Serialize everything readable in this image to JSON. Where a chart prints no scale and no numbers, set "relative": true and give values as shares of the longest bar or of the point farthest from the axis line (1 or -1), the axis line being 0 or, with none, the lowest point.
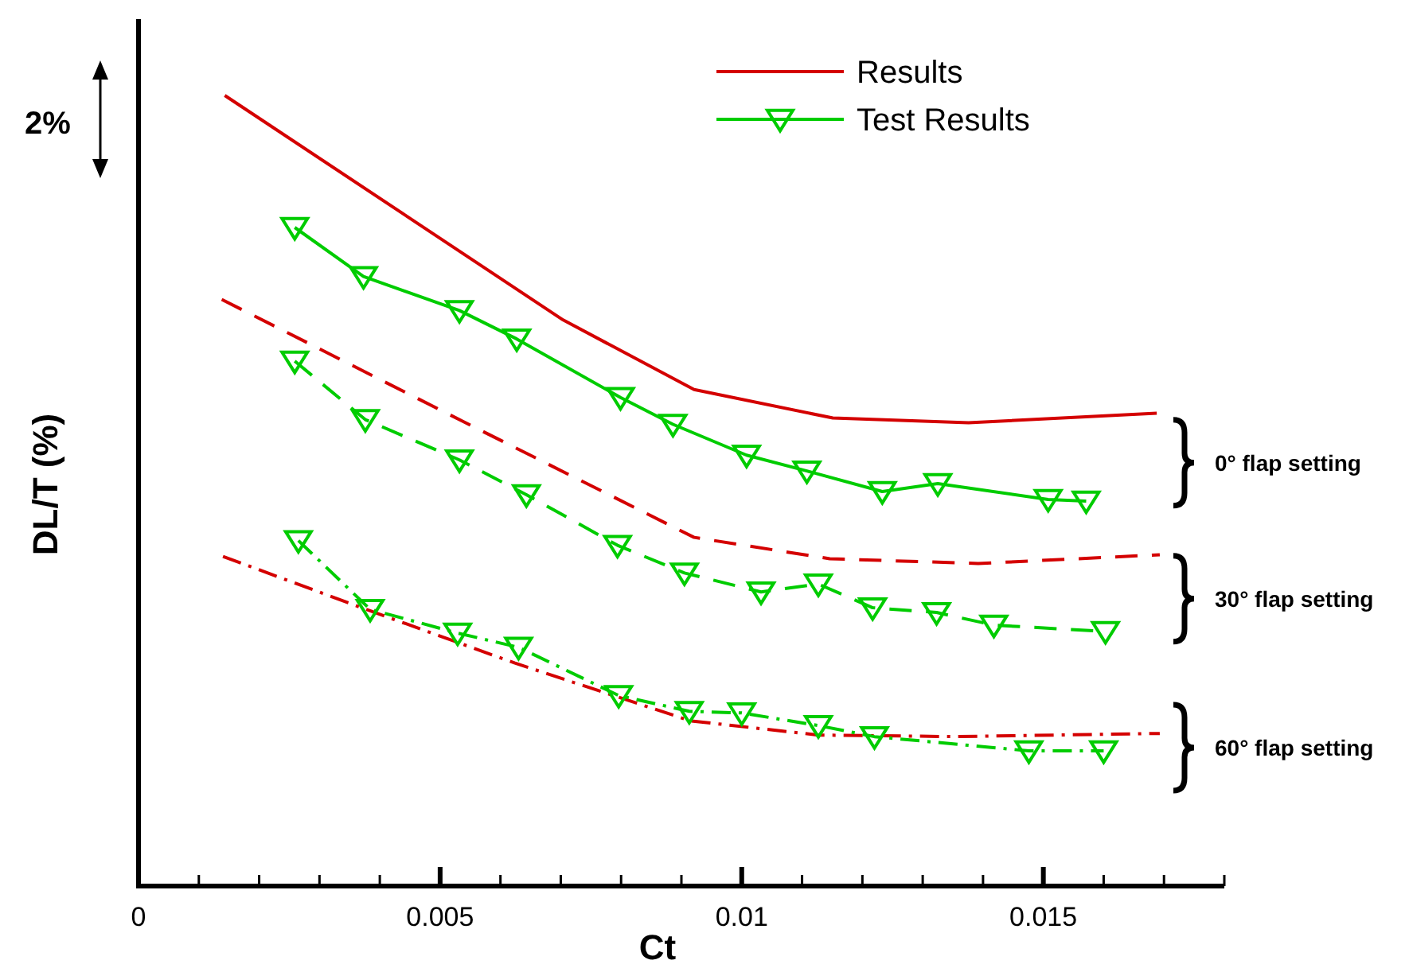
{
  "chart_data": {
    "type": "line",
    "relative": true,
    "xlabel": "Ct",
    "ylabel": "DL/T (%)",
    "xlim": [
      0,
      0.018
    ],
    "xticks": [
      0,
      {
        "value": 0.001,
        "label": null
      },
      {
        "value": 0.002,
        "label": null
      },
      {
        "value": 0.003,
        "label": null
      },
      {
        "value": 0.004,
        "label": null
      },
      0.005,
      {
        "value": 0.006,
        "label": null
      },
      {
        "value": 0.007,
        "label": null
      },
      {
        "value": 0.008,
        "label": null
      },
      {
        "value": 0.009,
        "label": null
      },
      0.01,
      {
        "value": 0.011,
        "label": null
      },
      {
        "value": 0.012,
        "label": null
      },
      {
        "value": 0.013,
        "label": null
      },
      {
        "value": 0.014,
        "label": null
      },
      0.015,
      {
        "value": 0.016,
        "label": null
      },
      {
        "value": 0.017,
        "label": null
      },
      {
        "value": 0.018,
        "label": null
      }
    ],
    "legend": "top right",
    "grid": false,
    "annotations": [
      "2%",
      "0° flap setting",
      "30° flap setting",
      "60° flap setting"
    ],
    "series": [
      {
        "name": "Results",
        "color": "#d40000",
        "line_style": "solid",
        "marker": "none",
        "x": [
          0.00143,
          0.00704,
          0.00921,
          0.01151,
          0.01376,
          0.01688
        ],
        "values": [
          1.0,
          0.716,
          0.628,
          0.592,
          0.586,
          0.598
        ]
      },
      {
        "name": "Test Results",
        "color": "#00cc00",
        "line_style": "solid",
        "marker": "triangle",
        "x": [
          0.00259,
          0.00373,
          0.00532,
          0.00627,
          0.00799,
          0.00886,
          0.01008,
          0.01108,
          0.01233,
          0.01325,
          0.01508,
          0.01571
        ],
        "values": [
          0.833,
          0.771,
          0.728,
          0.692,
          0.618,
          0.584,
          0.545,
          0.525,
          0.499,
          0.509,
          0.489,
          0.487
        ]
      },
      {
        "color": "#d40000",
        "line_style": "dashed",
        "marker": "none",
        "x": [
          0.00138,
          0.00537,
          0.00921,
          0.01146,
          0.01392,
          0.01693
        ],
        "values": [
          0.742,
          0.588,
          0.441,
          0.414,
          0.408,
          0.419
        ]
      },
      {
        "color": "#00cc00",
        "line_style": "dashed",
        "marker": "triangle",
        "x": [
          0.00259,
          0.00376,
          0.00532,
          0.00643,
          0.00794,
          0.00905,
          0.01032,
          0.01127,
          0.01217,
          0.01323,
          0.01418,
          0.01603
        ],
        "values": [
          0.664,
          0.59,
          0.539,
          0.495,
          0.431,
          0.396,
          0.372,
          0.382,
          0.352,
          0.346,
          0.33,
          0.322
        ]
      },
      {
        "color": "#d40000",
        "line_style": "dashdot",
        "marker": "none",
        "x": [
          0.0014,
          0.0037,
          0.00624,
          0.00915,
          0.01127,
          0.01357,
          0.01693
        ],
        "values": [
          0.417,
          0.352,
          0.282,
          0.209,
          0.191,
          0.189,
          0.193
        ]
      },
      {
        "color": "#00cc00",
        "line_style": "dashdot",
        "marker": "triangle",
        "x": [
          0.00265,
          0.00384,
          0.00529,
          0.0063,
          0.00796,
          0.00913,
          0.01,
          0.01127,
          0.0122,
          0.01476,
          0.016
        ],
        "values": [
          0.437,
          0.35,
          0.32,
          0.302,
          0.241,
          0.221,
          0.219,
          0.203,
          0.189,
          0.171,
          0.171
        ]
      }
    ]
  }
}
